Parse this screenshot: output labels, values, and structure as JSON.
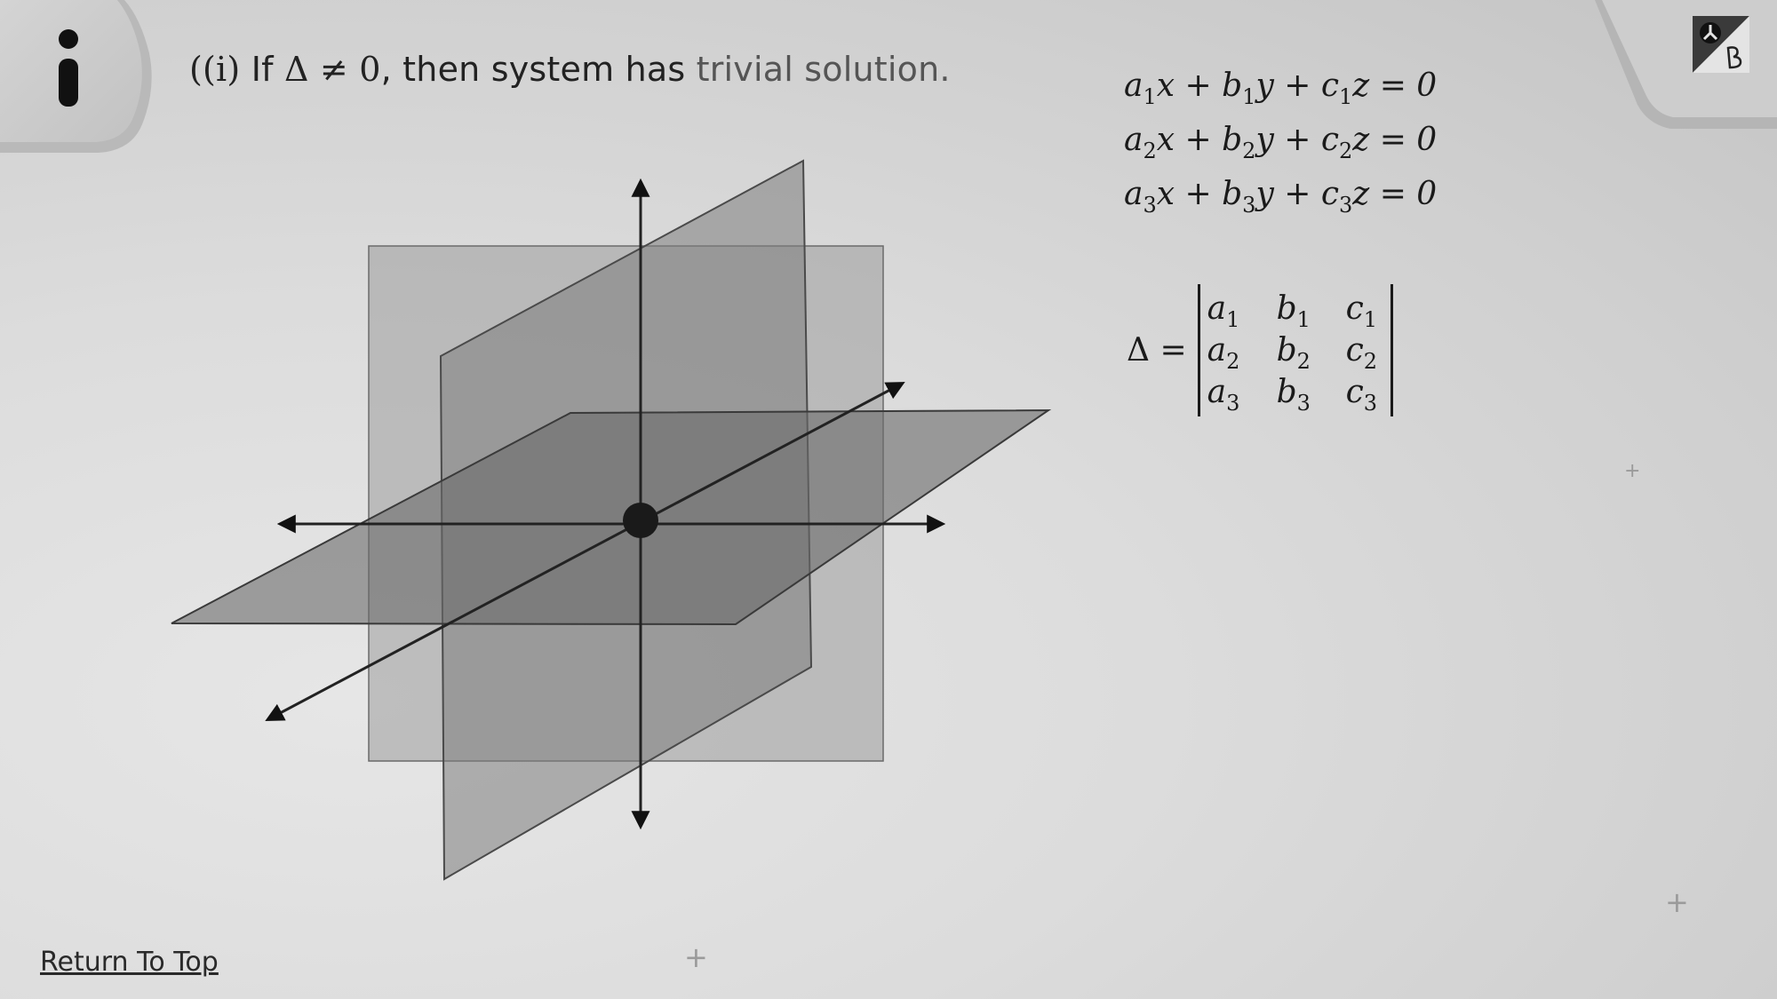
{
  "statement": {
    "label": "(i)",
    "prefix": "If",
    "condition": "Δ ≠ 0",
    "middle": ", then system has",
    "highlight": "trivial solution."
  },
  "equations": {
    "eq1": {
      "a": "a",
      "s1": "1",
      "x": "x + ",
      "b": "b",
      "s2": "1",
      "y": "y + ",
      "c": "c",
      "s3": "1",
      "z": "z = 0"
    },
    "eq2": {
      "a": "a",
      "s1": "2",
      "x": "x + ",
      "b": "b",
      "s2": "2",
      "y": "y + ",
      "c": "c",
      "s3": "2",
      "z": "z = 0"
    },
    "eq3": {
      "a": "a",
      "s1": "3",
      "x": "x + ",
      "b": "b",
      "s2": "3",
      "y": "y + ",
      "c": "c",
      "s3": "3",
      "z": "z = 0"
    }
  },
  "determinant": {
    "lhs": "Δ =",
    "rows": [
      [
        {
          "v": "a",
          "s": "1"
        },
        {
          "v": "b",
          "s": "1"
        },
        {
          "v": "c",
          "s": "1"
        }
      ],
      [
        {
          "v": "a",
          "s": "2"
        },
        {
          "v": "b",
          "s": "2"
        },
        {
          "v": "c",
          "s": "2"
        }
      ],
      [
        {
          "v": "a",
          "s": "3"
        },
        {
          "v": "b",
          "s": "3"
        },
        {
          "v": "c",
          "s": "3"
        }
      ]
    ]
  },
  "nav": {
    "return_label": "Return To Top"
  },
  "icons": {
    "info": "info-icon",
    "corner": "brand-logo-icon",
    "decor": "plus-icon"
  },
  "colors": {
    "plane_front": "#8f8f8f",
    "plane_vertical": "#7a7a7a",
    "plane_horizontal": "#6e6e6e",
    "axis": "#111111",
    "origin_point": "#1a1a1a"
  }
}
